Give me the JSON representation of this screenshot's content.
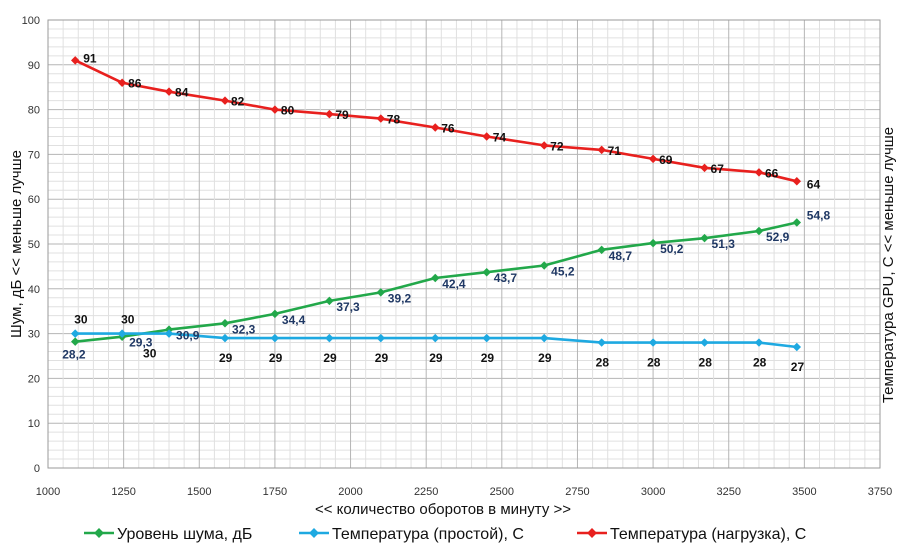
{
  "chart_data": {
    "type": "line",
    "xlabel": "<< количество оборотов в минуту >>",
    "ylabel_left": "Шум, дБ << меньше лучше",
    "ylabel_right": "Температура GPU, С << меньше лучше",
    "xlim": [
      1000,
      3750
    ],
    "ylim": [
      0,
      100
    ],
    "x_ticks": [
      "1000",
      "1250",
      "1500",
      "1750",
      "2000",
      "2250",
      "2500",
      "2750",
      "3000",
      "3250",
      "3500",
      "3750"
    ],
    "y_ticks": [
      "0",
      "10",
      "20",
      "30",
      "40",
      "50",
      "60",
      "70",
      "80",
      "90",
      "100"
    ],
    "grid": true,
    "legend_position": "bottom",
    "series": [
      {
        "name": "Уровень шума, дБ",
        "color": "#22A84A",
        "label_color": "#1F3864",
        "x": [
          1090,
          1245,
          1400,
          1585,
          1750,
          1930,
          2100,
          2280,
          2450,
          2640,
          2830,
          3000,
          3170,
          3350,
          3475
        ],
        "y": [
          28.2,
          29.3,
          30.9,
          32.3,
          34.4,
          37.3,
          39.2,
          42.4,
          43.7,
          45.2,
          48.7,
          50.2,
          51.3,
          52.9,
          54.8
        ],
        "labels": [
          "28,2",
          "29,3",
          "30,9",
          "32,3",
          "34,4",
          "37,3",
          "39,2",
          "42,4",
          "43,7",
          "45,2",
          "48,7",
          "50,2",
          "51,3",
          "52,9",
          "54,8"
        ]
      },
      {
        "name": "Температура (простой), С",
        "color": "#1EA9E1",
        "label_color": "#111111",
        "x": [
          1090,
          1245,
          1400,
          1585,
          1750,
          1930,
          2100,
          2280,
          2450,
          2640,
          2830,
          3000,
          3170,
          3350,
          3475
        ],
        "y": [
          30,
          30,
          30,
          29,
          29,
          29,
          29,
          29,
          29,
          29,
          28,
          28,
          28,
          28,
          27
        ],
        "labels": [
          "30",
          "30",
          "30",
          "29",
          "29",
          "29",
          "29",
          "29",
          "29",
          "29",
          "28",
          "28",
          "28",
          "28",
          "27"
        ]
      },
      {
        "name": "Температура (нагрузка), С",
        "color": "#E8201E",
        "label_color": "#111111",
        "x": [
          1090,
          1245,
          1400,
          1585,
          1750,
          1930,
          2100,
          2280,
          2450,
          2640,
          2830,
          3000,
          3170,
          3350,
          3475
        ],
        "y": [
          91,
          86,
          84,
          82,
          80,
          79,
          78,
          76,
          74,
          72,
          71,
          69,
          67,
          66,
          64
        ],
        "labels": [
          "91",
          "86",
          "84",
          "82",
          "80",
          "79",
          "78",
          "76",
          "74",
          "72",
          "71",
          "69",
          "67",
          "66",
          "64"
        ]
      }
    ]
  }
}
